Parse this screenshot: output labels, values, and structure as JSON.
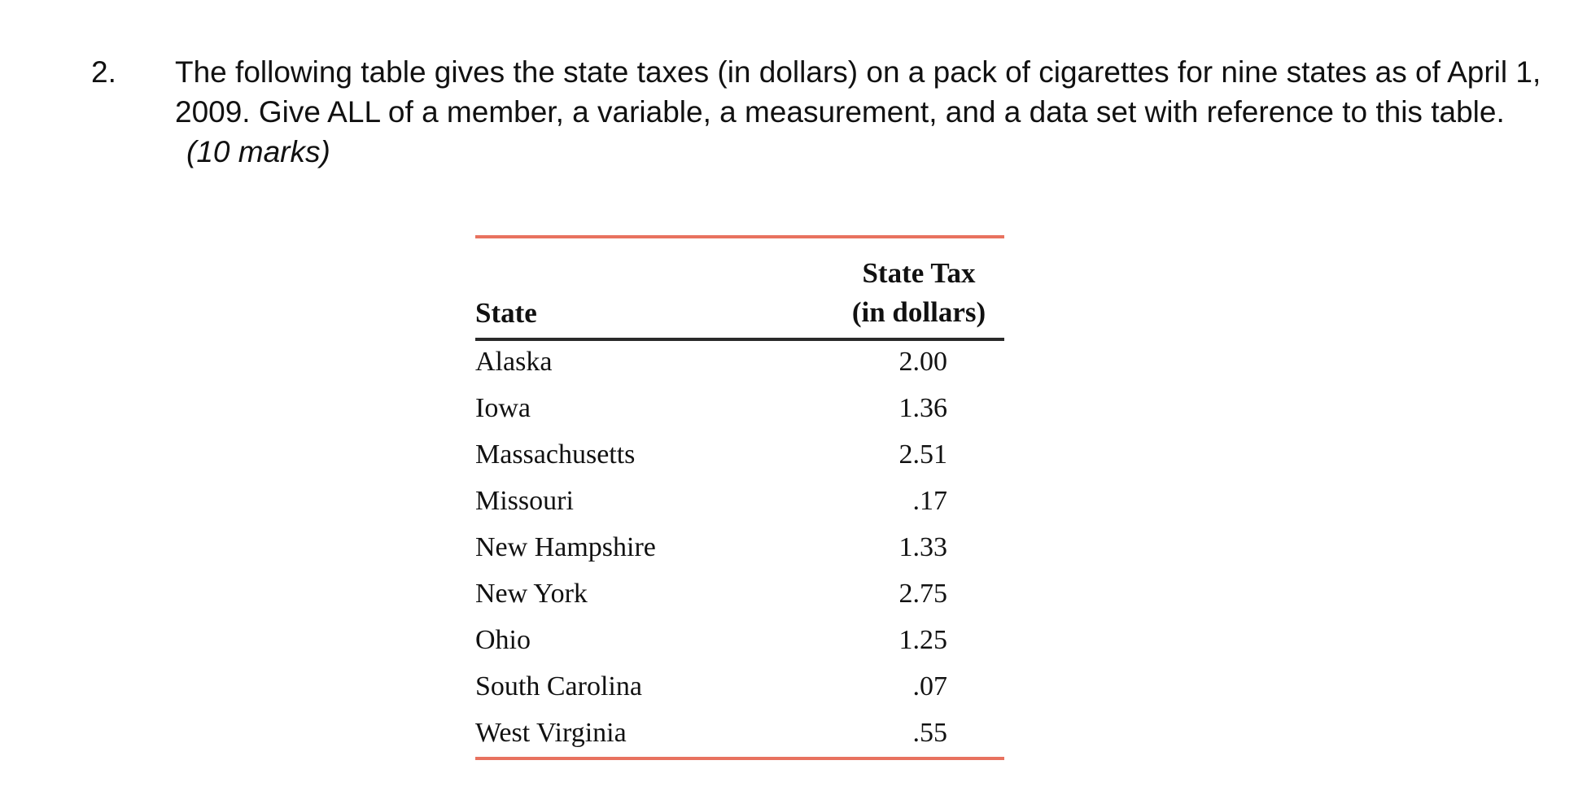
{
  "question": {
    "number": "2.",
    "text": "The following table gives the state taxes (in dollars) on a pack of cigarettes for nine states as of April 1, 2009. Give ALL of a member, a variable, a measurement, and a data set with reference to this table.",
    "marks": "(10 marks)"
  },
  "table": {
    "headers": {
      "state": "State",
      "tax_line1": "State Tax",
      "tax_line2": "(in dollars)"
    },
    "rows": [
      {
        "state": "Alaska",
        "tax": "2.00"
      },
      {
        "state": "Iowa",
        "tax": "1.36"
      },
      {
        "state": "Massachusetts",
        "tax": "2.51"
      },
      {
        "state": "Missouri",
        "tax": ".17"
      },
      {
        "state": "New Hampshire",
        "tax": "1.33"
      },
      {
        "state": "New York",
        "tax": "2.75"
      },
      {
        "state": "Ohio",
        "tax": "1.25"
      },
      {
        "state": "South Carolina",
        "tax": ".07"
      },
      {
        "state": "West Virginia",
        "tax": ".55"
      }
    ]
  },
  "colors": {
    "table_accent_rule": "#e8725f",
    "header_rule": "#2a2a2a",
    "text": "#111111"
  }
}
